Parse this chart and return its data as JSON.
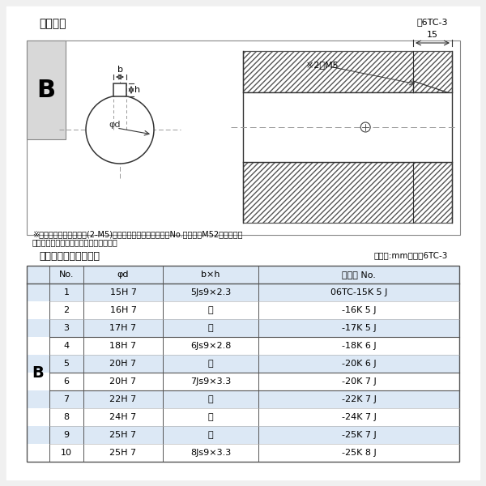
{
  "bg_color": "#ffffff",
  "border_color": "#cccccc",
  "section1_title": "軸穴形状",
  "section1_fig": "図6TC-3",
  "section2_title": "軸穴形状コード一覧表",
  "section2_unit": "（単位:mm）　表6TC-3",
  "note1": "※セットボルト用タップ(2-M5)が必要な場合は右記コードNo.の末尾にM52を付ける。",
  "note2": "（セットボルトは付属されています。）",
  "diagram_note": "※2－M5",
  "diagram_dim": "15",
  "table_headers": [
    "No.",
    "φd",
    "b×h",
    "コード No."
  ],
  "table_rows": [
    [
      "1",
      "15H 7",
      "5Js9×2.3",
      "06TC-15K 5 J"
    ],
    [
      "2",
      "16H 7",
      "〃",
      "-16K 5 J"
    ],
    [
      "3",
      "17H 7",
      "〃",
      "-17K 5 J"
    ],
    [
      "4",
      "18H 7",
      "6Js9×2.8",
      "-18K 6 J"
    ],
    [
      "5",
      "20H 7",
      "〃",
      "-20K 6 J"
    ],
    [
      "6",
      "20H 7",
      "7Js9×3.3",
      "-20K 7 J"
    ],
    [
      "7",
      "22H 7",
      "〃",
      "-22K 7 J"
    ],
    [
      "8",
      "24H 7",
      "〃",
      "-24K 7 J"
    ],
    [
      "9",
      "25H 7",
      "〃",
      "-25K 7 J"
    ],
    [
      "10",
      "25H 7",
      "8Js9×3.3",
      "-25K 8 J"
    ]
  ],
  "row_colors": [
    "#dce8f5",
    "#ffffff",
    "#dce8f5",
    "#ffffff",
    "#dce8f5",
    "#ffffff",
    "#dce8f5",
    "#ffffff",
    "#dce8f5",
    "#ffffff"
  ],
  "header_color": "#dce8f5",
  "bold_sep_after": [
    2,
    4,
    5,
    9
  ]
}
